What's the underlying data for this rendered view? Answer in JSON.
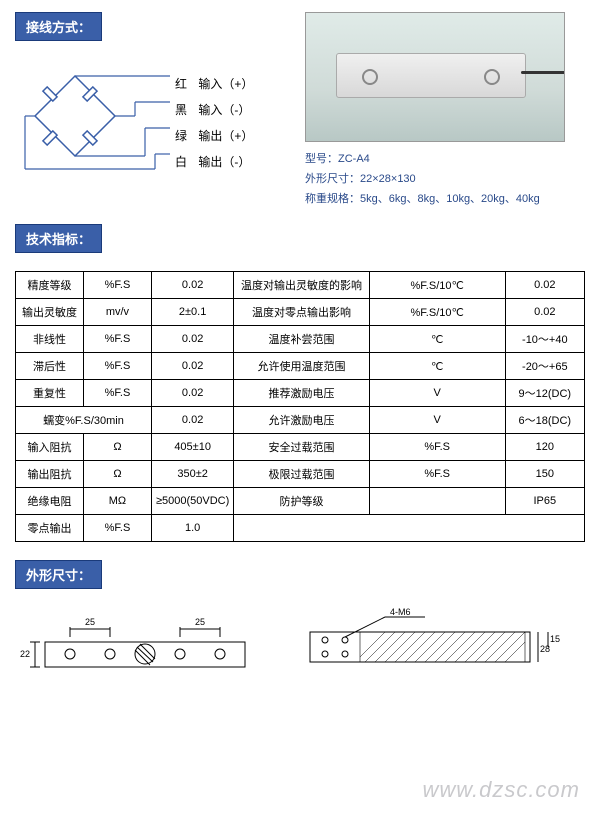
{
  "sections": {
    "wiring_header": "接线方式：",
    "spec_header": "技术指标：",
    "dimensions_header": "外形尺寸："
  },
  "wiring": {
    "wires": [
      {
        "color": "红",
        "signal": "输入（+）",
        "stroke": "#d00000"
      },
      {
        "color": "黑",
        "signal": "输入（-）",
        "stroke": "#000000"
      },
      {
        "color": "绿",
        "signal": "输出（+）",
        "stroke": "#008000"
      },
      {
        "color": "白",
        "signal": "输出（-）",
        "stroke": "#888888"
      }
    ],
    "diagram_color": "#3a5fa8"
  },
  "product": {
    "model_label": "型号：",
    "model": "ZC-A4",
    "dims_label": "外形尺寸：",
    "dims": "22×28×130",
    "weight_range_label": "称重规格：",
    "weight_range": "5kg、6kg、8kg、10kg、20kg、40kg"
  },
  "spec_rows": [
    [
      "精度等级",
      "%F.S",
      "0.02",
      "温度对输出灵敏度的影响",
      "%F.S/10℃",
      "0.02"
    ],
    [
      "输出灵敏度",
      "mv/v",
      "2±0.1",
      "温度对零点输出影响",
      "%F.S/10℃",
      "0.02"
    ],
    [
      "非线性",
      "%F.S",
      "0.02",
      "温度补尝范围",
      "℃",
      "-10～+40"
    ],
    [
      "滞后性",
      "%F.S",
      "0.02",
      "允许使用温度范围",
      "℃",
      "-20～+65"
    ],
    [
      "重复性",
      "%F.S",
      "0.02",
      "推荐激励电压",
      "V",
      "9～12(DC)"
    ],
    [
      "蠕变%F.S/30min",
      "",
      "0.02",
      "允许激励电压",
      "V",
      "6～18(DC)"
    ],
    [
      "输入阻抗",
      "Ω",
      "405±10",
      "安全过载范围",
      "%F.S",
      "120"
    ],
    [
      "输出阻抗",
      "Ω",
      "350±2",
      "极限过载范围",
      "%F.S",
      "150"
    ],
    [
      "绝缘电阻",
      "MΩ",
      "≥5000(50VDC)",
      "防护等级",
      "",
      "IP65"
    ],
    [
      "零点输出",
      "%F.S",
      "1.0",
      "",
      "",
      ""
    ]
  ],
  "dim_drawing": {
    "d1": "25",
    "d2": "25",
    "h": "22",
    "hole": "4-M6",
    "h2": "28",
    "h3": "15"
  },
  "watermark": "www.dzsc.com"
}
